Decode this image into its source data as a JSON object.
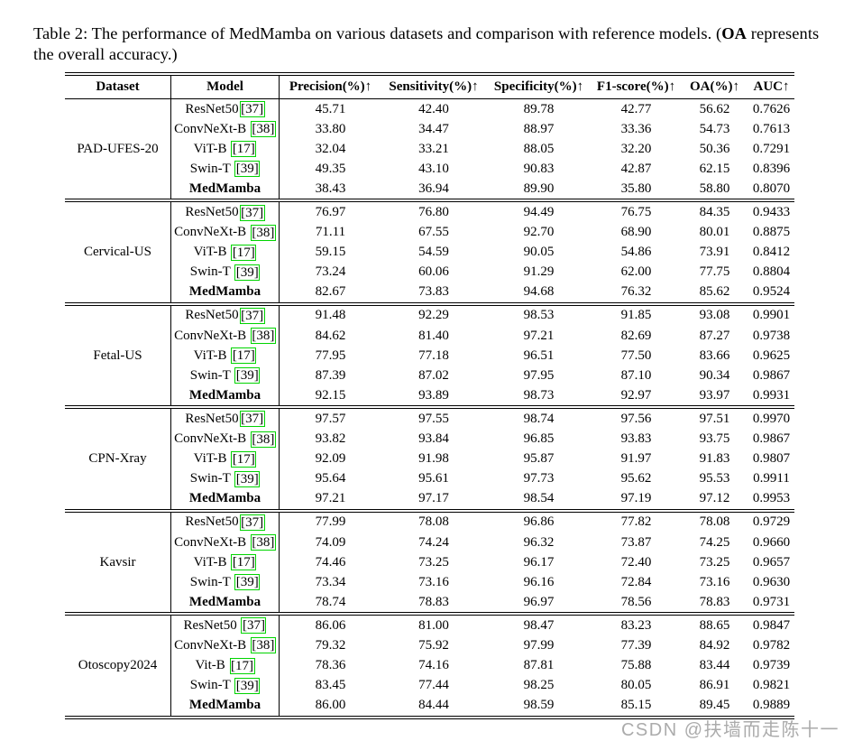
{
  "caption": {
    "pre_bold": "Table 2: The performance of MedMamba on various datasets and comparison with reference models. (",
    "bold": "OA",
    "post_bold": " represents",
    "line2": "the overall accuracy.)"
  },
  "colors": {
    "citation_box_green": "#00d400",
    "watermark_gray": "#ababab",
    "rule_black": "#000000"
  },
  "watermark": {
    "text": "CSDN @扶墙而走陈十一"
  },
  "table": {
    "headers": [
      "Dataset",
      "Model",
      "Precision(%)↑",
      "Sensitivity(%)↑",
      "Specificity(%)↑",
      "F1-score(%)↑",
      "OA(%)↑",
      "AUC↑"
    ],
    "groups": [
      {
        "dataset": "PAD-UFES-20",
        "rows": [
          {
            "model": "ResNet50",
            "cite": "37",
            "space": false,
            "bold": false,
            "values": [
              "45.71",
              "42.40",
              "89.78",
              "42.77",
              "56.62",
              "0.7626"
            ]
          },
          {
            "model": "ConvNeXt-B",
            "cite": "38",
            "space": true,
            "bold": false,
            "values": [
              "33.80",
              "34.47",
              "88.97",
              "33.36",
              "54.73",
              "0.7613"
            ]
          },
          {
            "model": "ViT-B",
            "cite": "17",
            "space": true,
            "bold": false,
            "values": [
              "32.04",
              "33.21",
              "88.05",
              "32.20",
              "50.36",
              "0.7291"
            ]
          },
          {
            "model": "Swin-T",
            "cite": "39",
            "space": true,
            "bold": false,
            "values": [
              "49.35",
              "43.10",
              "90.83",
              "42.87",
              "62.15",
              "0.8396"
            ]
          },
          {
            "model": "MedMamba",
            "cite": null,
            "space": false,
            "bold": true,
            "values": [
              "38.43",
              "36.94",
              "89.90",
              "35.80",
              "58.80",
              "0.8070"
            ]
          }
        ]
      },
      {
        "dataset": "Cervical-US",
        "rows": [
          {
            "model": "ResNet50",
            "cite": "37",
            "space": false,
            "bold": false,
            "values": [
              "76.97",
              "76.80",
              "94.49",
              "76.75",
              "84.35",
              "0.9433"
            ]
          },
          {
            "model": "ConvNeXt-B",
            "cite": "38",
            "space": true,
            "bold": false,
            "values": [
              "71.11",
              "67.55",
              "92.70",
              "68.90",
              "80.01",
              "0.8875"
            ]
          },
          {
            "model": "ViT-B",
            "cite": "17",
            "space": true,
            "bold": false,
            "values": [
              "59.15",
              "54.59",
              "90.05",
              "54.86",
              "73.91",
              "0.8412"
            ]
          },
          {
            "model": "Swin-T",
            "cite": "39",
            "space": true,
            "bold": false,
            "values": [
              "73.24",
              "60.06",
              "91.29",
              "62.00",
              "77.75",
              "0.8804"
            ]
          },
          {
            "model": "MedMamba",
            "cite": null,
            "space": false,
            "bold": true,
            "values": [
              "82.67",
              "73.83",
              "94.68",
              "76.32",
              "85.62",
              "0.9524"
            ]
          }
        ]
      },
      {
        "dataset": "Fetal-US",
        "rows": [
          {
            "model": "ResNet50",
            "cite": "37",
            "space": false,
            "bold": false,
            "values": [
              "91.48",
              "92.29",
              "98.53",
              "91.85",
              "93.08",
              "0.9901"
            ]
          },
          {
            "model": "ConvNeXt-B",
            "cite": "38",
            "space": true,
            "bold": false,
            "values": [
              "84.62",
              "81.40",
              "97.21",
              "82.69",
              "87.27",
              "0.9738"
            ]
          },
          {
            "model": "ViT-B",
            "cite": "17",
            "space": true,
            "bold": false,
            "values": [
              "77.95",
              "77.18",
              "96.51",
              "77.50",
              "83.66",
              "0.9625"
            ]
          },
          {
            "model": "Swin-T",
            "cite": "39",
            "space": true,
            "bold": false,
            "values": [
              "87.39",
              "87.02",
              "97.95",
              "87.10",
              "90.34",
              "0.9867"
            ]
          },
          {
            "model": "MedMamba",
            "cite": null,
            "space": false,
            "bold": true,
            "values": [
              "92.15",
              "93.89",
              "98.73",
              "92.97",
              "93.97",
              "0.9931"
            ]
          }
        ]
      },
      {
        "dataset": "CPN-Xray",
        "rows": [
          {
            "model": "ResNet50",
            "cite": "37",
            "space": false,
            "bold": false,
            "values": [
              "97.57",
              "97.55",
              "98.74",
              "97.56",
              "97.51",
              "0.9970"
            ]
          },
          {
            "model": "ConvNeXt-B",
            "cite": "38",
            "space": true,
            "bold": false,
            "values": [
              "93.82",
              "93.84",
              "96.85",
              "93.83",
              "93.75",
              "0.9867"
            ]
          },
          {
            "model": "ViT-B",
            "cite": "17",
            "space": true,
            "bold": false,
            "values": [
              "92.09",
              "91.98",
              "95.87",
              "91.97",
              "91.83",
              "0.9807"
            ]
          },
          {
            "model": "Swin-T",
            "cite": "39",
            "space": true,
            "bold": false,
            "values": [
              "95.64",
              "95.61",
              "97.73",
              "95.62",
              "95.53",
              "0.9911"
            ]
          },
          {
            "model": "MedMamba",
            "cite": null,
            "space": false,
            "bold": true,
            "values": [
              "97.21",
              "97.17",
              "98.54",
              "97.19",
              "97.12",
              "0.9953"
            ]
          }
        ]
      },
      {
        "dataset": "Kavsir",
        "rows": [
          {
            "model": "ResNet50",
            "cite": "37",
            "space": false,
            "bold": false,
            "values": [
              "77.99",
              "78.08",
              "96.86",
              "77.82",
              "78.08",
              "0.9729"
            ]
          },
          {
            "model": "ConvNeXt-B",
            "cite": "38",
            "space": true,
            "bold": false,
            "values": [
              "74.09",
              "74.24",
              "96.32",
              "73.87",
              "74.25",
              "0.9660"
            ]
          },
          {
            "model": "ViT-B",
            "cite": "17",
            "space": true,
            "bold": false,
            "values": [
              "74.46",
              "73.25",
              "96.17",
              "72.40",
              "73.25",
              "0.9657"
            ]
          },
          {
            "model": "Swin-T",
            "cite": "39",
            "space": true,
            "bold": false,
            "values": [
              "73.34",
              "73.16",
              "96.16",
              "72.84",
              "73.16",
              "0.9630"
            ]
          },
          {
            "model": "MedMamba",
            "cite": null,
            "space": false,
            "bold": true,
            "values": [
              "78.74",
              "78.83",
              "96.97",
              "78.56",
              "78.83",
              "0.9731"
            ]
          }
        ]
      },
      {
        "dataset": "Otoscopy2024",
        "rows": [
          {
            "model": "ResNet50",
            "cite": "37",
            "space": true,
            "bold": false,
            "values": [
              "86.06",
              "81.00",
              "98.47",
              "83.23",
              "88.65",
              "0.9847"
            ]
          },
          {
            "model": "ConvNeXt-B",
            "cite": "38",
            "space": true,
            "bold": false,
            "values": [
              "79.32",
              "75.92",
              "97.99",
              "77.39",
              "84.92",
              "0.9782"
            ]
          },
          {
            "model": "Vit-B",
            "cite": "17",
            "space": true,
            "bold": false,
            "values": [
              "78.36",
              "74.16",
              "87.81",
              "75.88",
              "83.44",
              "0.9739"
            ]
          },
          {
            "model": "Swin-T",
            "cite": "39",
            "space": true,
            "bold": false,
            "values": [
              "83.45",
              "77.44",
              "98.25",
              "80.05",
              "86.91",
              "0.9821"
            ]
          },
          {
            "model": "MedMamba",
            "cite": null,
            "space": false,
            "bold": true,
            "values": [
              "86.00",
              "84.44",
              "98.59",
              "85.15",
              "89.45",
              "0.9889"
            ]
          }
        ]
      }
    ]
  }
}
